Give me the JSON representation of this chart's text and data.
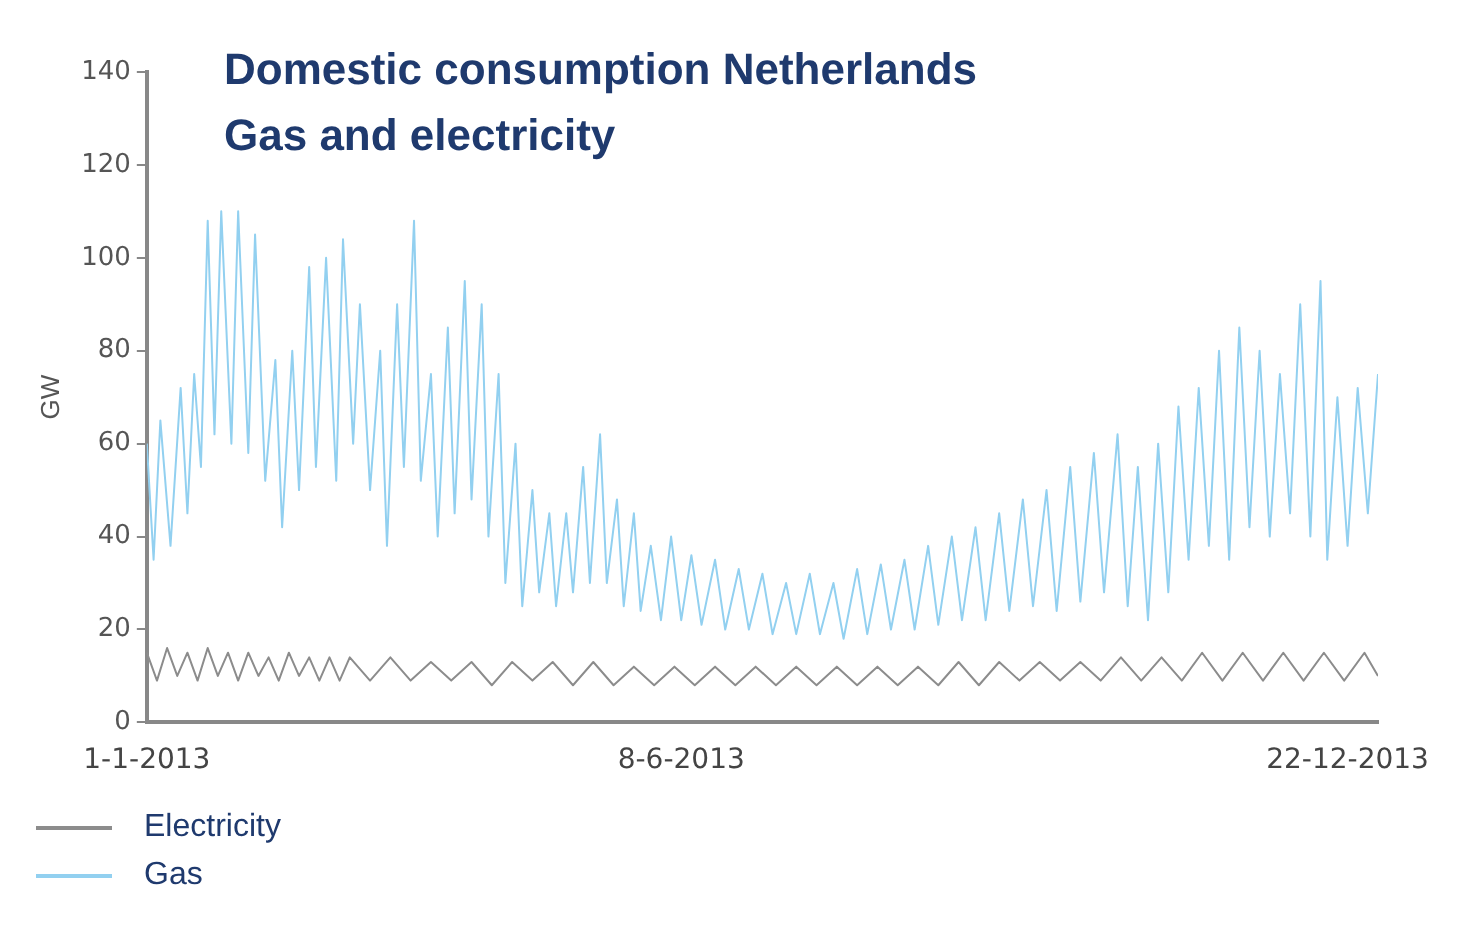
{
  "chart_data": {
    "type": "line",
    "title": "Domestic consumption Netherlands",
    "subtitle": "Gas and electricity",
    "ylabel": "GW",
    "xlim": [
      "2013-01-01",
      "2013-12-31"
    ],
    "xticks": [
      {
        "value": "2013-01-01",
        "label": "1-1-2013"
      },
      {
        "value": "2013-06-08",
        "label": "8-6-2013"
      },
      {
        "value": "2013-12-22",
        "label": "22-12-2013"
      }
    ],
    "ylim": [
      0,
      140
    ],
    "yticks": [
      0,
      20,
      40,
      60,
      80,
      100,
      120,
      140
    ],
    "grid": false,
    "legend": "bottom left",
    "marker": "none",
    "line_style": "solid",
    "series": [
      {
        "name": "Electricity",
        "color": "#8c8c8c",
        "x": [
          "2013-01-01",
          "2013-01-04",
          "2013-01-07",
          "2013-01-10",
          "2013-01-13",
          "2013-01-16",
          "2013-01-19",
          "2013-01-22",
          "2013-01-25",
          "2013-01-28",
          "2013-01-31",
          "2013-02-03",
          "2013-02-06",
          "2013-02-09",
          "2013-02-12",
          "2013-02-15",
          "2013-02-18",
          "2013-02-21",
          "2013-02-24",
          "2013-02-27",
          "2013-03-02",
          "2013-03-08",
          "2013-03-14",
          "2013-03-20",
          "2013-03-26",
          "2013-04-01",
          "2013-04-07",
          "2013-04-13",
          "2013-04-19",
          "2013-04-25",
          "2013-05-01",
          "2013-05-07",
          "2013-05-13",
          "2013-05-19",
          "2013-05-25",
          "2013-05-31",
          "2013-06-06",
          "2013-06-12",
          "2013-06-18",
          "2013-06-24",
          "2013-06-30",
          "2013-07-06",
          "2013-07-12",
          "2013-07-18",
          "2013-07-24",
          "2013-07-30",
          "2013-08-05",
          "2013-08-11",
          "2013-08-17",
          "2013-08-23",
          "2013-08-29",
          "2013-09-04",
          "2013-09-10",
          "2013-09-16",
          "2013-09-22",
          "2013-09-28",
          "2013-10-04",
          "2013-10-10",
          "2013-10-16",
          "2013-10-22",
          "2013-10-28",
          "2013-11-03",
          "2013-11-09",
          "2013-11-15",
          "2013-11-21",
          "2013-11-27",
          "2013-12-03",
          "2013-12-09",
          "2013-12-15",
          "2013-12-21",
          "2013-12-27",
          "2013-12-31"
        ],
        "values": [
          15,
          9,
          16,
          10,
          15,
          9,
          16,
          10,
          15,
          9,
          15,
          10,
          14,
          9,
          15,
          10,
          14,
          9,
          14,
          9,
          14,
          9,
          14,
          9,
          13,
          9,
          13,
          8,
          13,
          9,
          13,
          8,
          13,
          8,
          12,
          8,
          12,
          8,
          12,
          8,
          12,
          8,
          12,
          8,
          12,
          8,
          12,
          8,
          12,
          8,
          13,
          8,
          13,
          9,
          13,
          9,
          13,
          9,
          14,
          9,
          14,
          9,
          15,
          9,
          15,
          9,
          15,
          9,
          15,
          9,
          15,
          10
        ]
      },
      {
        "name": "Gas",
        "color": "#92d0f0",
        "x": [
          "2013-01-01",
          "2013-01-03",
          "2013-01-05",
          "2013-01-08",
          "2013-01-11",
          "2013-01-13",
          "2013-01-15",
          "2013-01-17",
          "2013-01-19",
          "2013-01-21",
          "2013-01-23",
          "2013-01-26",
          "2013-01-28",
          "2013-01-31",
          "2013-02-02",
          "2013-02-05",
          "2013-02-08",
          "2013-02-10",
          "2013-02-13",
          "2013-02-15",
          "2013-02-18",
          "2013-02-20",
          "2013-02-23",
          "2013-02-26",
          "2013-02-28",
          "2013-03-03",
          "2013-03-05",
          "2013-03-08",
          "2013-03-11",
          "2013-03-13",
          "2013-03-16",
          "2013-03-18",
          "2013-03-21",
          "2013-03-23",
          "2013-03-26",
          "2013-03-28",
          "2013-03-31",
          "2013-04-02",
          "2013-04-05",
          "2013-04-07",
          "2013-04-10",
          "2013-04-12",
          "2013-04-15",
          "2013-04-17",
          "2013-04-20",
          "2013-04-22",
          "2013-04-25",
          "2013-04-27",
          "2013-04-30",
          "2013-05-02",
          "2013-05-05",
          "2013-05-07",
          "2013-05-10",
          "2013-05-12",
          "2013-05-15",
          "2013-05-17",
          "2013-05-20",
          "2013-05-22",
          "2013-05-25",
          "2013-05-27",
          "2013-05-30",
          "2013-06-02",
          "2013-06-05",
          "2013-06-08",
          "2013-06-11",
          "2013-06-14",
          "2013-06-18",
          "2013-06-21",
          "2013-06-25",
          "2013-06-28",
          "2013-07-02",
          "2013-07-05",
          "2013-07-09",
          "2013-07-12",
          "2013-07-16",
          "2013-07-19",
          "2013-07-23",
          "2013-07-26",
          "2013-07-30",
          "2013-08-02",
          "2013-08-06",
          "2013-08-09",
          "2013-08-13",
          "2013-08-16",
          "2013-08-20",
          "2013-08-23",
          "2013-08-27",
          "2013-08-30",
          "2013-09-03",
          "2013-09-06",
          "2013-09-10",
          "2013-09-13",
          "2013-09-17",
          "2013-09-20",
          "2013-09-24",
          "2013-09-27",
          "2013-10-01",
          "2013-10-04",
          "2013-10-08",
          "2013-10-11",
          "2013-10-15",
          "2013-10-18",
          "2013-10-21",
          "2013-10-24",
          "2013-10-27",
          "2013-10-30",
          "2013-11-02",
          "2013-11-05",
          "2013-11-08",
          "2013-11-11",
          "2013-11-14",
          "2013-11-17",
          "2013-11-20",
          "2013-11-23",
          "2013-11-26",
          "2013-11-29",
          "2013-12-02",
          "2013-12-05",
          "2013-12-08",
          "2013-12-11",
          "2013-12-14",
          "2013-12-16",
          "2013-12-19",
          "2013-12-22",
          "2013-12-25",
          "2013-12-28",
          "2013-12-31"
        ],
        "values": [
          60,
          35,
          65,
          38,
          72,
          45,
          75,
          55,
          108,
          62,
          110,
          60,
          110,
          58,
          105,
          52,
          78,
          42,
          80,
          50,
          98,
          55,
          100,
          52,
          104,
          60,
          90,
          50,
          80,
          38,
          90,
          55,
          108,
          52,
          75,
          40,
          85,
          45,
          95,
          48,
          90,
          40,
          75,
          30,
          60,
          25,
          50,
          28,
          45,
          25,
          45,
          28,
          55,
          30,
          62,
          30,
          48,
          25,
          45,
          24,
          38,
          22,
          40,
          22,
          36,
          21,
          35,
          20,
          33,
          20,
          32,
          19,
          30,
          19,
          32,
          19,
          30,
          18,
          33,
          19,
          34,
          20,
          35,
          20,
          38,
          21,
          40,
          22,
          42,
          22,
          45,
          24,
          48,
          25,
          50,
          24,
          55,
          26,
          58,
          28,
          62,
          25,
          55,
          22,
          60,
          28,
          68,
          35,
          72,
          38,
          80,
          35,
          85,
          42,
          80,
          40,
          75,
          45,
          90,
          40,
          95,
          35,
          70,
          38,
          72,
          45,
          75
        ]
      }
    ]
  }
}
